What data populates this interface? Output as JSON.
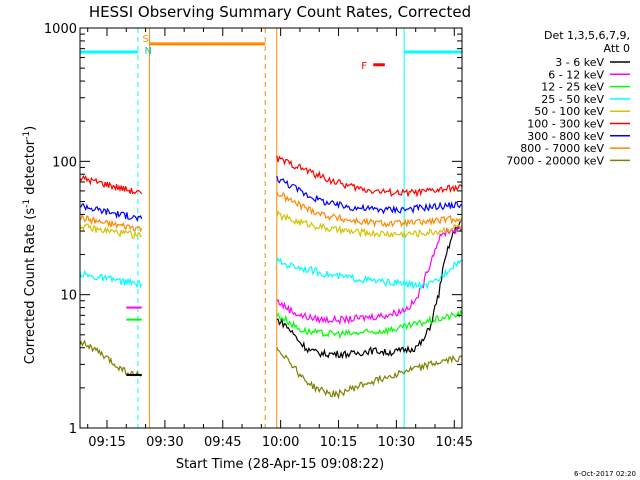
{
  "chart_data": {
    "type": "line",
    "title": "HESSI Observing Summary Count Rates, Corrected",
    "xlabel": "Start Time (28-Apr-15 09:08:22)",
    "ylabel_main": "Corrected Count Rate (s",
    "ylabel_sup1": "-1",
    "ylabel_mid": " detector",
    "ylabel_sup2": "-1",
    "ylabel_end": ")",
    "yscale": "log",
    "xlim": [
      "09:08",
      "10:47"
    ],
    "ylim": [
      1,
      1000
    ],
    "x_ticks": [
      "09:15",
      "09:30",
      "09:45",
      "10:00",
      "10:15",
      "10:30",
      "10:45"
    ],
    "y_ticks": [
      "1",
      "10",
      "100",
      "1000"
    ],
    "legend_header": [
      "Det 1,3,5,6,7,9,",
      "Att 0"
    ],
    "legend_placement": "right",
    "footer": "6-Oct-2017 02:20",
    "flag_labels": {
      "saa": "S",
      "night": "N",
      "flare": "F"
    },
    "series": [
      {
        "name": "3 - 6 keV",
        "color": "#000000",
        "segments": [
          {
            "start": "09:08",
            "end": "09:24",
            "values": []
          },
          {
            "start": "09:59",
            "end": "10:47",
            "values": [
              6.5,
              6.0,
              5.2,
              4.4,
              3.9,
              3.7,
              3.6,
              3.6,
              3.6,
              3.6,
              3.6,
              3.7,
              3.8,
              3.8,
              3.7,
              3.7,
              3.8,
              3.9,
              4.0,
              4.5,
              6.0,
              10.0,
              20.0,
              30.0,
              36.0
            ]
          }
        ]
      },
      {
        "name": "6 - 12 keV",
        "color": "#ff00ff",
        "segments": [
          {
            "start": "09:08",
            "end": "09:24",
            "values": []
          },
          {
            "start": "09:59",
            "end": "10:47",
            "values": [
              9.0,
              8.2,
              7.5,
              7.0,
              6.8,
              6.6,
              6.5,
              6.5,
              6.5,
              6.5,
              6.6,
              6.7,
              6.8,
              6.9,
              7.0,
              7.2,
              7.5,
              8.0,
              9.0,
              12.0,
              18.0,
              26.0,
              30.0,
              30.5,
              31.0
            ]
          }
        ]
      },
      {
        "name": "12 - 25 keV",
        "color": "#00ff00",
        "segments": [
          {
            "start": "09:08",
            "end": "09:24",
            "values": []
          },
          {
            "start": "09:59",
            "end": "10:47",
            "values": [
              7.0,
              6.6,
              6.0,
              5.5,
              5.3,
              5.2,
              5.1,
              5.1,
              5.1,
              5.1,
              5.1,
              5.2,
              5.2,
              5.3,
              5.4,
              5.5,
              5.6,
              5.8,
              6.0,
              6.2,
              6.4,
              6.6,
              6.8,
              7.0,
              7.2
            ]
          }
        ]
      },
      {
        "name": "25 - 50 keV",
        "color": "#00ffff",
        "segments": [
          {
            "start": "09:08",
            "end": "09:24",
            "values": [
              14.5,
              14.0,
              13.5,
              13.5,
              13.0,
              13.0,
              12.5,
              12.5,
              12.0,
              12.0
            ]
          },
          {
            "start": "09:59",
            "end": "10:47",
            "values": [
              18.0,
              17.0,
              16.5,
              16.0,
              15.5,
              15.0,
              14.5,
              14.0,
              13.7,
              13.5,
              13.3,
              13.0,
              12.8,
              12.6,
              12.4,
              12.3,
              12.2,
              12.0,
              11.8,
              11.5,
              12.0,
              13.0,
              15.0,
              17.0,
              18.0
            ]
          }
        ]
      },
      {
        "name": "50 - 100 keV",
        "color": "#d4c400",
        "segments": [
          {
            "start": "09:08",
            "end": "09:24",
            "values": [
              33.0,
              32.0,
              31.0,
              30.5,
              30.0,
              29.5,
              29.0,
              28.5,
              28.0,
              27.5
            ]
          },
          {
            "start": "09:59",
            "end": "10:47",
            "values": [
              40.0,
              38.0,
              36.0,
              35.0,
              34.0,
              33.0,
              32.0,
              31.0,
              30.5,
              30.0,
              29.5,
              29.3,
              29.0,
              28.8,
              28.6,
              28.5,
              28.5,
              28.6,
              28.8,
              29.0,
              29.5,
              30.0,
              31.0,
              32.0,
              33.0
            ]
          }
        ]
      },
      {
        "name": "100 - 300 keV",
        "color": "#ff0000",
        "segments": [
          {
            "start": "09:08",
            "end": "09:24",
            "values": [
              75.0,
              73.0,
              71.0,
              69.0,
              67.0,
              65.0,
              63.0,
              61.0,
              59.0,
              57.0
            ]
          },
          {
            "start": "09:59",
            "end": "10:47",
            "values": [
              105.0,
              100.0,
              95.0,
              90.0,
              85.0,
              80.0,
              76.0,
              72.0,
              69.0,
              66.0,
              64.0,
              62.0,
              61.0,
              60.0,
              59.0,
              58.5,
              58.0,
              58.0,
              58.5,
              59.0,
              60.0,
              61.0,
              62.0,
              63.0,
              64.0
            ]
          }
        ]
      },
      {
        "name": "300 - 800 keV",
        "color": "#0000ff",
        "segments": [
          {
            "start": "09:08",
            "end": "09:24",
            "values": [
              47.0,
              46.0,
              44.0,
              43.0,
              42.0,
              41.0,
              40.0,
              39.0,
              38.0,
              37.0
            ]
          },
          {
            "start": "09:59",
            "end": "10:47",
            "values": [
              75.0,
              70.0,
              65.0,
              60.0,
              56.0,
              53.0,
              50.0,
              48.0,
              47.0,
              46.0,
              45.0,
              44.5,
              44.0,
              43.5,
              43.5,
              43.5,
              43.5,
              44.0,
              44.5,
              45.0,
              45.5,
              46.0,
              46.5,
              47.0,
              47.5
            ]
          }
        ]
      },
      {
        "name": "800 - 7000 keV",
        "color": "#ff8800",
        "segments": [
          {
            "start": "09:08",
            "end": "09:24",
            "values": [
              38.0,
              37.0,
              36.0,
              35.0,
              34.0,
              33.5,
              33.0,
              32.5,
              32.0,
              31.5
            ]
          },
          {
            "start": "09:59",
            "end": "10:47",
            "values": [
              58.0,
              54.0,
              50.0,
              47.0,
              44.0,
              42.0,
              40.0,
              38.5,
              37.5,
              36.5,
              35.8,
              35.2,
              34.8,
              34.5,
              34.3,
              34.2,
              34.2,
              34.4,
              34.7,
              35.0,
              35.5,
              36.0,
              36.5,
              37.0,
              37.5
            ]
          }
        ]
      },
      {
        "name": "7000 - 20000 keV",
        "color": "#808000",
        "segments": [
          {
            "start": "09:08",
            "end": "09:24",
            "values": [
              4.5,
              4.2,
              3.9,
              3.6,
              3.3,
              3.0,
              2.8,
              2.6,
              2.5,
              2.5
            ]
          },
          {
            "start": "09:59",
            "end": "10:47",
            "values": [
              4.0,
              3.5,
              3.0,
              2.5,
              2.2,
              2.0,
              1.9,
              1.8,
              1.8,
              1.9,
              2.0,
              2.1,
              2.2,
              2.3,
              2.4,
              2.5,
              2.6,
              2.7,
              2.8,
              2.9,
              3.0,
              3.1,
              3.2,
              3.3,
              3.4
            ]
          }
        ]
      }
    ],
    "extra_pulses": [
      {
        "series": "6 - 12 keV",
        "start": "09:20",
        "end": "09:24",
        "value": 8.0
      },
      {
        "series": "12 - 25 keV",
        "start": "09:20",
        "end": "09:24",
        "value": 6.5
      },
      {
        "series": "3 - 6 keV",
        "start": "09:20",
        "end": "09:24",
        "value": 2.5
      }
    ],
    "flag_bars": [
      {
        "flag": "night",
        "color": "#00ffff",
        "start": "09:08",
        "end": "09:23",
        "value": 660
      },
      {
        "flag": "saa",
        "color": "#ff8800",
        "start": "09:26",
        "end": "09:56",
        "value": 760
      },
      {
        "flag": "night",
        "color": "#00ffff",
        "start": "10:32",
        "end": "10:47",
        "value": 660
      },
      {
        "flag": "flare",
        "color": "#ff0000",
        "start": "10:24",
        "end": "10:27",
        "value": 530
      }
    ],
    "vertical_lines": [
      {
        "color": "#00ffff",
        "style": "solid",
        "x": "09:08"
      },
      {
        "color": "#00ffff",
        "style": "dashed",
        "x": "09:23"
      },
      {
        "color": "#ff8800",
        "style": "solid",
        "x": "09:26"
      },
      {
        "color": "#ff8800",
        "style": "dashed",
        "x": "09:56"
      },
      {
        "color": "#ff8800",
        "style": "solid",
        "x": "09:59"
      },
      {
        "color": "#00ffff",
        "style": "solid",
        "x": "10:32"
      },
      {
        "color": "#00ffff",
        "style": "dashed",
        "x": "10:47"
      }
    ]
  }
}
